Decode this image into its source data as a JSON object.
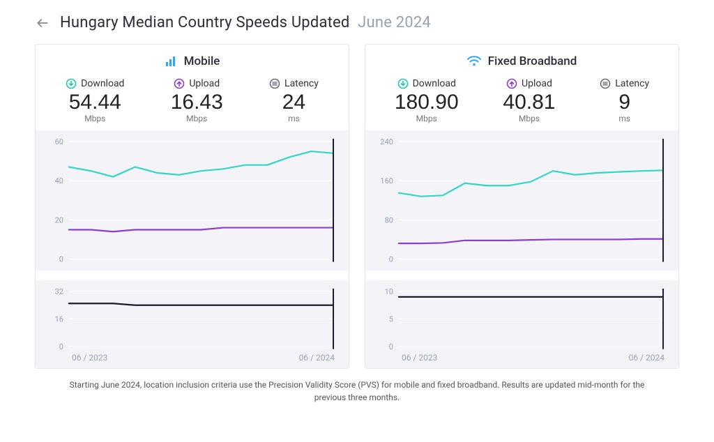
{
  "header": {
    "title_main": "Hungary Median Country Speeds Updated",
    "title_muted": "June 2024"
  },
  "labels": {
    "download": "Download",
    "upload": "Upload",
    "latency": "Latency",
    "mbps": "Mbps",
    "ms": "ms",
    "x_start": "06 / 2023",
    "x_end": "06 / 2024"
  },
  "colors": {
    "download_line": "#33d6c4",
    "upload_line": "#8a3dd1",
    "latency_line": "#1a1a2a",
    "download_icon": "#1fc7b6",
    "upload_icon": "#8a3dd1",
    "latency_icon": "#6b6b7a",
    "mobile_icon": "#2aa8ff",
    "wifi_icon": "#2aa8ff",
    "panel_border": "#e6e6ee",
    "chart_bg": "#f4f4f8",
    "grid": "#ffffff",
    "axis_text": "#9aa0b4",
    "marker": "#1a1a2a"
  },
  "mobile": {
    "title": "Mobile",
    "download": {
      "value": "54.44",
      "unit": "Mbps"
    },
    "upload": {
      "value": "16.43",
      "unit": "Mbps"
    },
    "latency": {
      "value": "24",
      "unit": "ms"
    },
    "speed_chart": {
      "type": "line",
      "ylim": [
        0,
        60
      ],
      "yticks": [
        0,
        20,
        40,
        60
      ],
      "n_points": 13,
      "download_series": [
        47,
        45,
        42,
        47,
        44,
        43,
        45,
        46,
        48,
        48,
        52,
        55,
        54
      ],
      "upload_series": [
        15,
        15,
        14,
        15,
        15,
        15,
        15,
        16,
        16,
        16,
        16,
        16,
        16
      ],
      "line_width": 2.2
    },
    "latency_chart": {
      "type": "line",
      "ylim": [
        0,
        32
      ],
      "yticks": [
        0,
        16,
        32
      ],
      "n_points": 13,
      "series": [
        25,
        25,
        25,
        24,
        24,
        24,
        24,
        24,
        24,
        24,
        24,
        24,
        24
      ],
      "line_width": 2.2
    }
  },
  "fixed": {
    "title": "Fixed Broadband",
    "download": {
      "value": "180.90",
      "unit": "Mbps"
    },
    "upload": {
      "value": "40.81",
      "unit": "Mbps"
    },
    "latency": {
      "value": "9",
      "unit": "ms"
    },
    "speed_chart": {
      "type": "line",
      "ylim": [
        0,
        240
      ],
      "yticks": [
        0,
        80,
        160,
        240
      ],
      "n_points": 13,
      "download_series": [
        135,
        128,
        130,
        155,
        150,
        150,
        158,
        180,
        172,
        176,
        178,
        180,
        181
      ],
      "upload_series": [
        32,
        32,
        33,
        38,
        38,
        38,
        39,
        40,
        40,
        40,
        40,
        41,
        41
      ],
      "line_width": 2.2
    },
    "latency_chart": {
      "type": "line",
      "ylim": [
        0,
        10
      ],
      "yticks": [
        0,
        5,
        10
      ],
      "n_points": 13,
      "series": [
        9,
        9,
        9,
        9,
        9,
        9,
        9,
        9,
        9,
        9,
        9,
        9,
        9
      ],
      "line_width": 2.2
    }
  },
  "footnote": "Starting June 2024, location inclusion criteria use the Precision Validity Score (PVS) for mobile and fixed broadband. Results are updated mid-month for the previous three months."
}
